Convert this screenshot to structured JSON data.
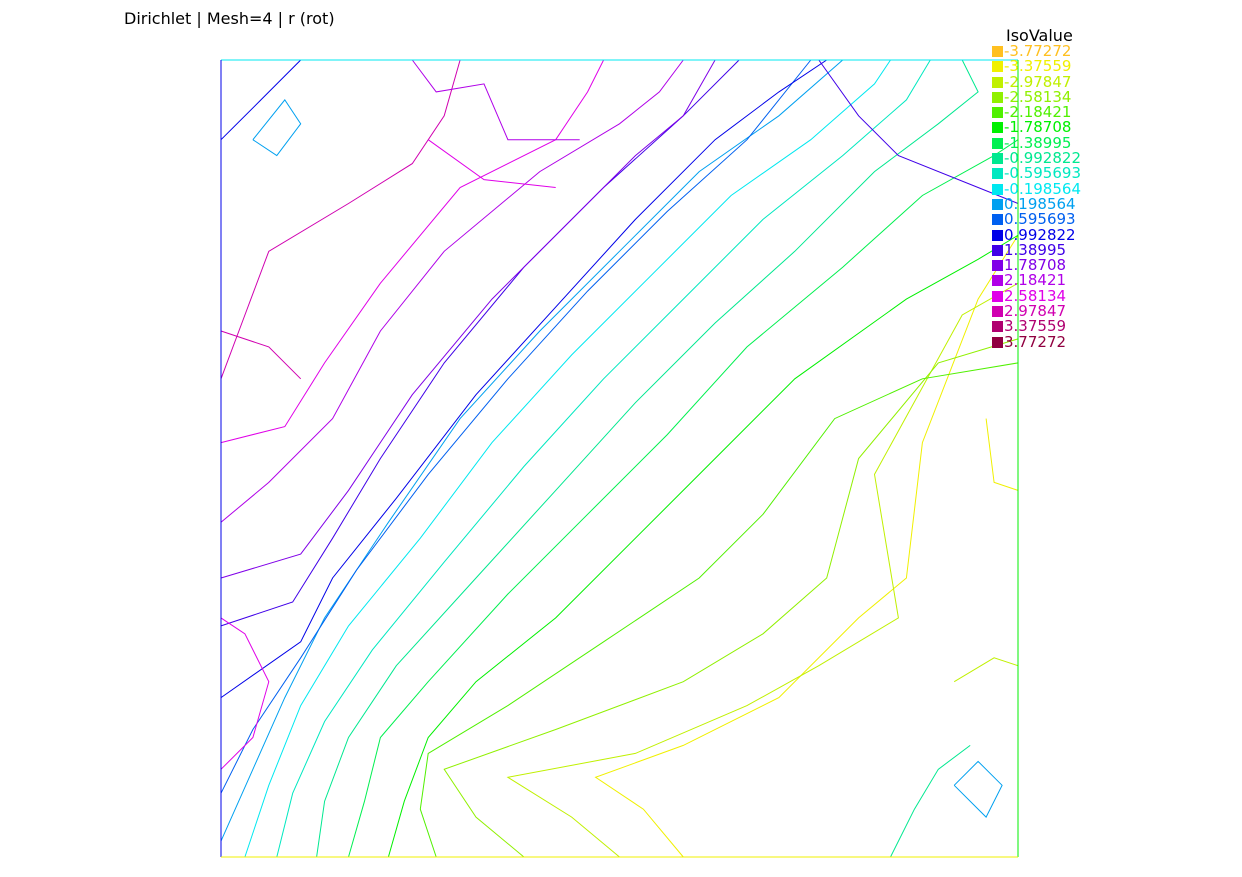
{
  "title": "Dirichlet | Mesh=4 | r (rot)",
  "chart_data": {
    "type": "contour",
    "title": "Dirichlet | Mesh=4 | r (rot)",
    "domain": {
      "xlim": [
        0,
        1
      ],
      "ylim": [
        0,
        1
      ]
    },
    "legend": {
      "title": "IsoValue",
      "placement": "right",
      "entries": [
        {
          "label": "-3.77272",
          "value": -3.77272,
          "color": "#ffc020"
        },
        {
          "label": "-3.37559",
          "value": -3.37559,
          "color": "#f0f000"
        },
        {
          "label": "-2.97847",
          "value": -2.97847,
          "color": "#c0f000"
        },
        {
          "label": "-2.58134",
          "value": -2.58134,
          "color": "#90f000"
        },
        {
          "label": "-2.18421",
          "value": -2.18421,
          "color": "#50f000"
        },
        {
          "label": "-1.78708",
          "value": -1.78708,
          "color": "#00f000"
        },
        {
          "label": "-1.38995",
          "value": -1.38995,
          "color": "#00f050"
        },
        {
          "label": "-0.992822",
          "value": -0.992822,
          "color": "#00e890"
        },
        {
          "label": "-0.595693",
          "value": -0.595693,
          "color": "#00e8c0"
        },
        {
          "label": "-0.198564",
          "value": -0.198564,
          "color": "#00e8f0"
        },
        {
          "label": "0.198564",
          "value": 0.198564,
          "color": "#00a0f0"
        },
        {
          "label": "0.595693",
          "value": 0.595693,
          "color": "#0060f0"
        },
        {
          "label": "0.992822",
          "value": 0.992822,
          "color": "#0000e8"
        },
        {
          "label": "1.38995",
          "value": 1.38995,
          "color": "#4000e8"
        },
        {
          "label": "1.78708",
          "value": 1.78708,
          "color": "#8000e8"
        },
        {
          "label": "2.18421",
          "value": 2.18421,
          "color": "#b000e8"
        },
        {
          "label": "2.58134",
          "value": 2.58134,
          "color": "#e000e8"
        },
        {
          "label": "2.97847",
          "value": 2.97847,
          "color": "#d000b0"
        },
        {
          "label": "3.37559",
          "value": 3.37559,
          "color": "#b00070"
        },
        {
          "label": "3.77272",
          "value": 3.77272,
          "color": "#900040"
        }
      ]
    },
    "contours": [
      {
        "level": -3.37559,
        "points": [
          [
            0.58,
            0
          ],
          [
            0.53,
            0.06
          ],
          [
            0.47,
            0.1
          ],
          [
            0.58,
            0.14
          ],
          [
            0.7,
            0.2
          ],
          [
            0.8,
            0.3
          ],
          [
            0.86,
            0.35
          ],
          [
            0.88,
            0.52
          ],
          [
            0.95,
            0.7
          ],
          [
            1,
            0.78
          ]
        ]
      },
      {
        "level": -2.97847,
        "points": [
          [
            0.5,
            0
          ],
          [
            0.44,
            0.05
          ],
          [
            0.36,
            0.1
          ],
          [
            0.52,
            0.13
          ],
          [
            0.66,
            0.19
          ],
          [
            0.75,
            0.24
          ],
          [
            0.85,
            0.3
          ],
          [
            0.82,
            0.48
          ],
          [
            0.93,
            0.68
          ],
          [
            1,
            0.72
          ]
        ]
      },
      {
        "level": -2.58134,
        "points": [
          [
            0.38,
            0
          ],
          [
            0.32,
            0.05
          ],
          [
            0.28,
            0.11
          ],
          [
            0.42,
            0.16
          ],
          [
            0.58,
            0.22
          ],
          [
            0.68,
            0.28
          ],
          [
            0.76,
            0.35
          ],
          [
            0.8,
            0.5
          ],
          [
            0.9,
            0.62
          ],
          [
            1,
            0.65
          ]
        ]
      },
      {
        "level": -2.18421,
        "points": [
          [
            0.27,
            0
          ],
          [
            0.25,
            0.06
          ],
          [
            0.26,
            0.13
          ],
          [
            0.36,
            0.19
          ],
          [
            0.48,
            0.27
          ],
          [
            0.6,
            0.35
          ],
          [
            0.68,
            0.43
          ],
          [
            0.77,
            0.55
          ],
          [
            0.88,
            0.6
          ],
          [
            1,
            0.62
          ]
        ]
      },
      {
        "level": -1.78708,
        "points": [
          [
            0.21,
            0
          ],
          [
            0.23,
            0.07
          ],
          [
            0.26,
            0.15
          ],
          [
            0.32,
            0.22
          ],
          [
            0.42,
            0.3
          ],
          [
            0.52,
            0.4
          ],
          [
            0.62,
            0.5
          ],
          [
            0.72,
            0.6
          ],
          [
            0.86,
            0.7
          ],
          [
            0.95,
            0.75
          ],
          [
            1,
            0.78
          ]
        ]
      },
      {
        "level": -1.38995,
        "points": [
          [
            0.16,
            0
          ],
          [
            0.18,
            0.07
          ],
          [
            0.2,
            0.15
          ],
          [
            0.26,
            0.22
          ],
          [
            0.36,
            0.33
          ],
          [
            0.46,
            0.43
          ],
          [
            0.56,
            0.53
          ],
          [
            0.66,
            0.64
          ],
          [
            0.78,
            0.74
          ],
          [
            0.88,
            0.83
          ],
          [
            0.97,
            0.88
          ],
          [
            1,
            0.9
          ]
        ]
      },
      {
        "level": -0.992822,
        "points": [
          [
            0.12,
            0
          ],
          [
            0.13,
            0.07
          ],
          [
            0.16,
            0.15
          ],
          [
            0.22,
            0.24
          ],
          [
            0.32,
            0.35
          ],
          [
            0.42,
            0.46
          ],
          [
            0.52,
            0.57
          ],
          [
            0.62,
            0.67
          ],
          [
            0.72,
            0.76
          ],
          [
            0.82,
            0.86
          ],
          [
            0.9,
            0.92
          ],
          [
            0.95,
            0.96
          ],
          [
            0.93,
            1
          ]
        ]
      },
      {
        "level": -0.595693,
        "points": [
          [
            0.07,
            0
          ],
          [
            0.09,
            0.08
          ],
          [
            0.13,
            0.17
          ],
          [
            0.19,
            0.26
          ],
          [
            0.28,
            0.37
          ],
          [
            0.38,
            0.49
          ],
          [
            0.48,
            0.6
          ],
          [
            0.58,
            0.7
          ],
          [
            0.68,
            0.8
          ],
          [
            0.78,
            0.88
          ],
          [
            0.86,
            0.95
          ],
          [
            0.89,
            1
          ]
        ]
      },
      {
        "level": -0.198564,
        "points": [
          [
            0.03,
            0
          ],
          [
            0.06,
            0.09
          ],
          [
            0.1,
            0.19
          ],
          [
            0.16,
            0.29
          ],
          [
            0.25,
            0.4
          ],
          [
            0.34,
            0.52
          ],
          [
            0.44,
            0.63
          ],
          [
            0.54,
            0.73
          ],
          [
            0.64,
            0.83
          ],
          [
            0.74,
            0.9
          ],
          [
            0.82,
            0.97
          ],
          [
            0.84,
            1
          ]
        ]
      },
      {
        "level": 0.198564,
        "points": [
          [
            0,
            0.02
          ],
          [
            0.04,
            0.11
          ],
          [
            0.08,
            0.2
          ],
          [
            0.13,
            0.3
          ],
          [
            0.21,
            0.42
          ],
          [
            0.3,
            0.55
          ],
          [
            0.4,
            0.66
          ],
          [
            0.5,
            0.76
          ],
          [
            0.6,
            0.86
          ],
          [
            0.7,
            0.93
          ],
          [
            0.78,
            1
          ]
        ]
      },
      {
        "level": 0.595693,
        "points": [
          [
            0,
            0.08
          ],
          [
            0.04,
            0.16
          ],
          [
            0.1,
            0.25
          ],
          [
            0.17,
            0.36
          ],
          [
            0.26,
            0.48
          ],
          [
            0.36,
            0.6
          ],
          [
            0.46,
            0.71
          ],
          [
            0.56,
            0.81
          ],
          [
            0.66,
            0.9
          ],
          [
            0.74,
            1
          ]
        ]
      },
      {
        "level": 0.992822,
        "points": [
          [
            0,
            0.2
          ],
          [
            0.1,
            0.27
          ],
          [
            0.14,
            0.35
          ],
          [
            0.22,
            0.45
          ],
          [
            0.32,
            0.58
          ],
          [
            0.42,
            0.69
          ],
          [
            0.52,
            0.8
          ],
          [
            0.62,
            0.9
          ],
          [
            0.7,
            0.96
          ],
          [
            0.76,
            1
          ]
        ]
      },
      {
        "level": 1.38995,
        "points": [
          [
            0,
            0.29
          ],
          [
            0.09,
            0.32
          ],
          [
            0.14,
            0.4
          ],
          [
            0.2,
            0.5
          ],
          [
            0.28,
            0.62
          ],
          [
            0.38,
            0.74
          ],
          [
            0.48,
            0.84
          ],
          [
            0.58,
            0.93
          ],
          [
            0.65,
            1
          ]
        ]
      },
      {
        "level": 1.78708,
        "points": [
          [
            0,
            0.35
          ],
          [
            0.1,
            0.38
          ],
          [
            0.16,
            0.46
          ],
          [
            0.24,
            0.58
          ],
          [
            0.34,
            0.7
          ],
          [
            0.42,
            0.78
          ],
          [
            0.52,
            0.88
          ],
          [
            0.58,
            0.93
          ],
          [
            0.62,
            1
          ]
        ]
      },
      {
        "level": 2.18421,
        "points": [
          [
            0,
            0.42
          ],
          [
            0.06,
            0.47
          ],
          [
            0.14,
            0.55
          ],
          [
            0.2,
            0.66
          ],
          [
            0.28,
            0.76
          ],
          [
            0.4,
            0.86
          ],
          [
            0.5,
            0.92
          ],
          [
            0.55,
            0.96
          ],
          [
            0.58,
            1
          ]
        ]
      },
      {
        "level": 2.58134,
        "points": [
          [
            0,
            0.52
          ],
          [
            0.08,
            0.54
          ],
          [
            0.13,
            0.62
          ],
          [
            0.2,
            0.72
          ],
          [
            0.3,
            0.84
          ],
          [
            0.42,
            0.9
          ],
          [
            0.46,
            0.96
          ],
          [
            0.48,
            1
          ]
        ]
      },
      {
        "level": 2.97847,
        "points": [
          [
            0,
            0.6
          ],
          [
            0.03,
            0.68
          ],
          [
            0.06,
            0.76
          ],
          [
            0.16,
            0.82
          ],
          [
            0.24,
            0.87
          ],
          [
            0.28,
            0.93
          ],
          [
            0.3,
            1
          ]
        ]
      },
      {
        "level": 0.198564,
        "points": [
          [
            0.04,
            0.9
          ],
          [
            0.08,
            0.95
          ],
          [
            0.1,
            0.92
          ],
          [
            0.07,
            0.88
          ],
          [
            0.04,
            0.9
          ]
        ]
      },
      {
        "level": 0.198564,
        "points": [
          [
            0.92,
            0.09
          ],
          [
            0.95,
            0.12
          ],
          [
            0.98,
            0.09
          ],
          [
            0.96,
            0.05
          ],
          [
            0.92,
            0.09
          ]
        ]
      },
      {
        "level": 0.992822,
        "points": [
          [
            0,
            0.9
          ],
          [
            0.05,
            0.95
          ],
          [
            0.1,
            1
          ]
        ]
      },
      {
        "level": 1.38995,
        "points": [
          [
            0.75,
            1
          ],
          [
            0.8,
            0.93
          ],
          [
            0.85,
            0.88
          ],
          [
            0.95,
            0.84
          ],
          [
            1,
            0.82
          ]
        ]
      },
      {
        "level": -3.37559,
        "points": [
          [
            0.96,
            0.55
          ],
          [
            0.97,
            0.47
          ],
          [
            1,
            0.46
          ]
        ]
      },
      {
        "level": -2.97847,
        "points": [
          [
            0.92,
            0.22
          ],
          [
            0.97,
            0.25
          ],
          [
            1,
            0.24
          ]
        ]
      },
      {
        "level": -0.992822,
        "points": [
          [
            0.84,
            0
          ],
          [
            0.87,
            0.06
          ],
          [
            0.9,
            0.11
          ],
          [
            0.94,
            0.14
          ]
        ]
      },
      {
        "level": 2.58134,
        "points": [
          [
            0,
            0.11
          ],
          [
            0.04,
            0.15
          ],
          [
            0.06,
            0.22
          ],
          [
            0.03,
            0.28
          ],
          [
            0,
            0.3
          ]
        ]
      },
      {
        "level": 2.97847,
        "points": [
          [
            0,
            0.66
          ],
          [
            0.06,
            0.64
          ],
          [
            0.1,
            0.6
          ]
        ]
      },
      {
        "level": 2.18421,
        "points": [
          [
            0.24,
            1
          ],
          [
            0.27,
            0.96
          ],
          [
            0.33,
            0.97
          ],
          [
            0.36,
            0.9
          ],
          [
            0.45,
            0.9
          ]
        ]
      },
      {
        "level": 2.58134,
        "points": [
          [
            0.26,
            0.9
          ],
          [
            0.33,
            0.85
          ],
          [
            0.42,
            0.84
          ]
        ]
      }
    ]
  }
}
